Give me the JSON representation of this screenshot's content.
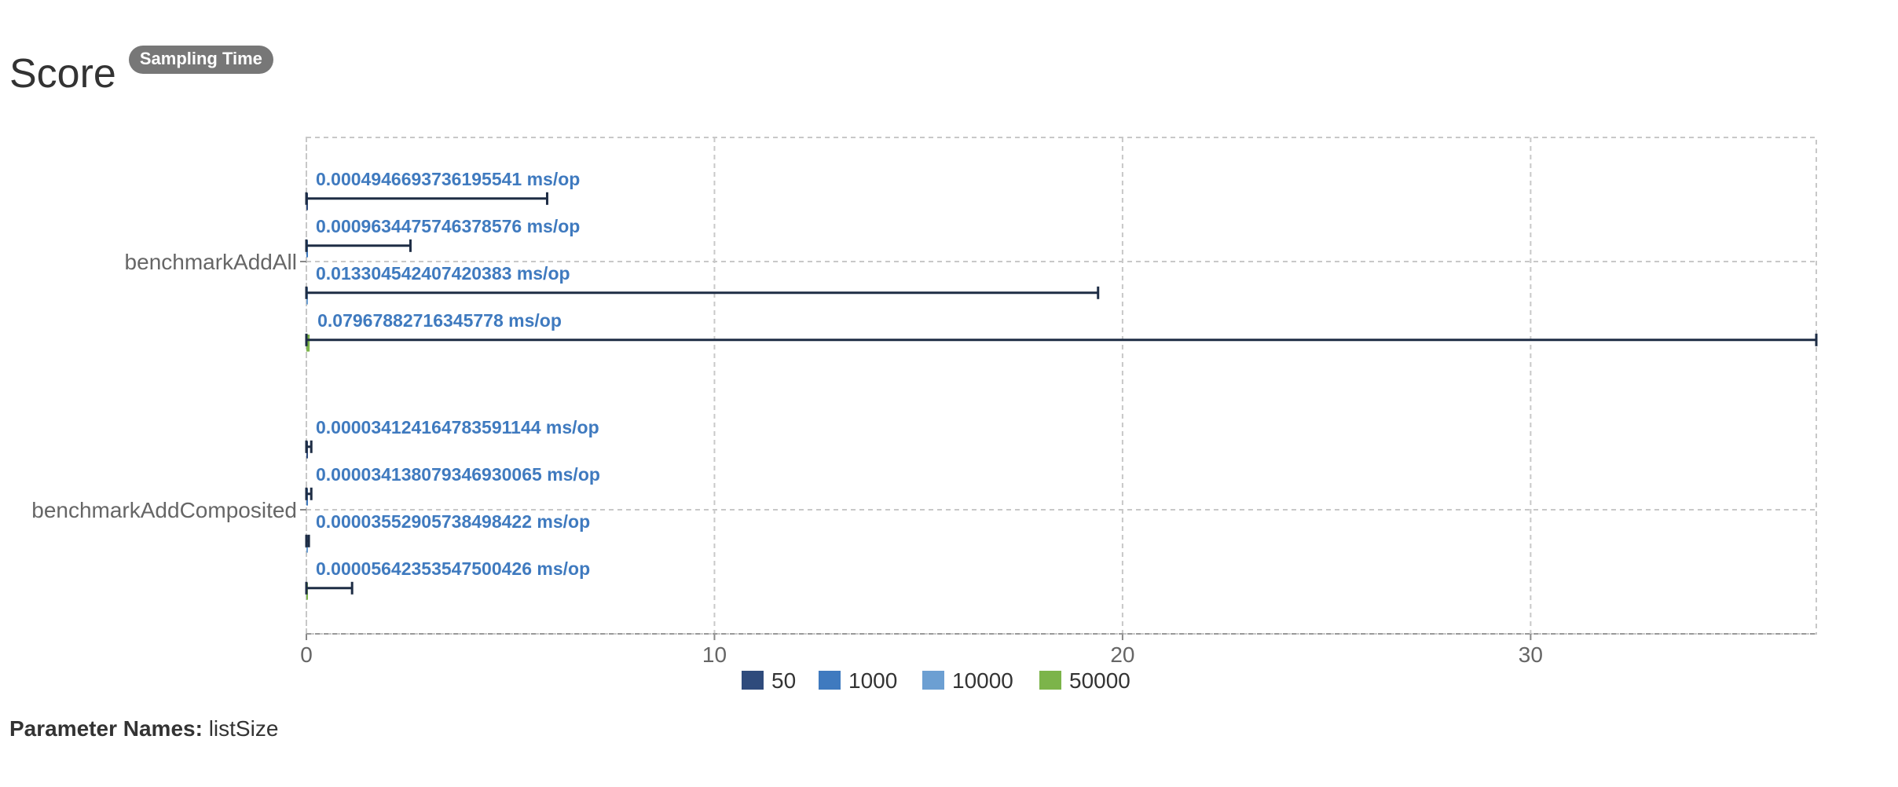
{
  "header": {
    "title": "Score",
    "badge": "Sampling Time"
  },
  "footer": {
    "param_label": "Parameter Names:",
    "param_value": "listSize"
  },
  "colors": {
    "series": [
      "#2f4b7c",
      "#3f7abf",
      "#6c9fd2",
      "#7cb44a"
    ],
    "error_bar": "#1e2d45",
    "value_label": "#3f7abf",
    "grid": "#c8c8c8",
    "axis_text": "#666666"
  },
  "chart_data": {
    "type": "bar",
    "orientation": "horizontal",
    "categories": [
      "benchmarkAddAll",
      "benchmarkAddComposited"
    ],
    "unit": "ms/op",
    "xlim": [
      0,
      37
    ],
    "x_ticks": [
      "0",
      "10",
      "20",
      "30"
    ],
    "x_tick_values": [
      0,
      10,
      20,
      30
    ],
    "grid": true,
    "legend_position": "bottom-center",
    "series": [
      {
        "name": "50",
        "values": [
          0.0004946693736195541,
          3.4124164783591144e-05
        ],
        "error_high": [
          5.9,
          0.12
        ],
        "labels": [
          "0.0004946693736195541 ms/op",
          "0.000034124164783591144 ms/op"
        ]
      },
      {
        "name": "1000",
        "values": [
          0.0009634475746378576,
          3.4138079346930065e-05
        ],
        "error_high": [
          2.55,
          0.12
        ],
        "labels": [
          "0.0009634475746378576 ms/op",
          "0.000034138079346930065 ms/op"
        ]
      },
      {
        "name": "10000",
        "values": [
          0.013304542407420383,
          3.552905738498422e-05
        ],
        "error_high": [
          19.4,
          0.06
        ],
        "labels": [
          "0.013304542407420383 ms/op",
          "0.00003552905738498422 ms/op"
        ]
      },
      {
        "name": "50000",
        "values": [
          0.07967882716345778,
          5.642353547500426e-05
        ],
        "error_high": [
          37.0,
          1.12
        ],
        "labels": [
          "0.07967882716345778 ms/op",
          "0.00005642353547500426 ms/op"
        ]
      }
    ]
  }
}
